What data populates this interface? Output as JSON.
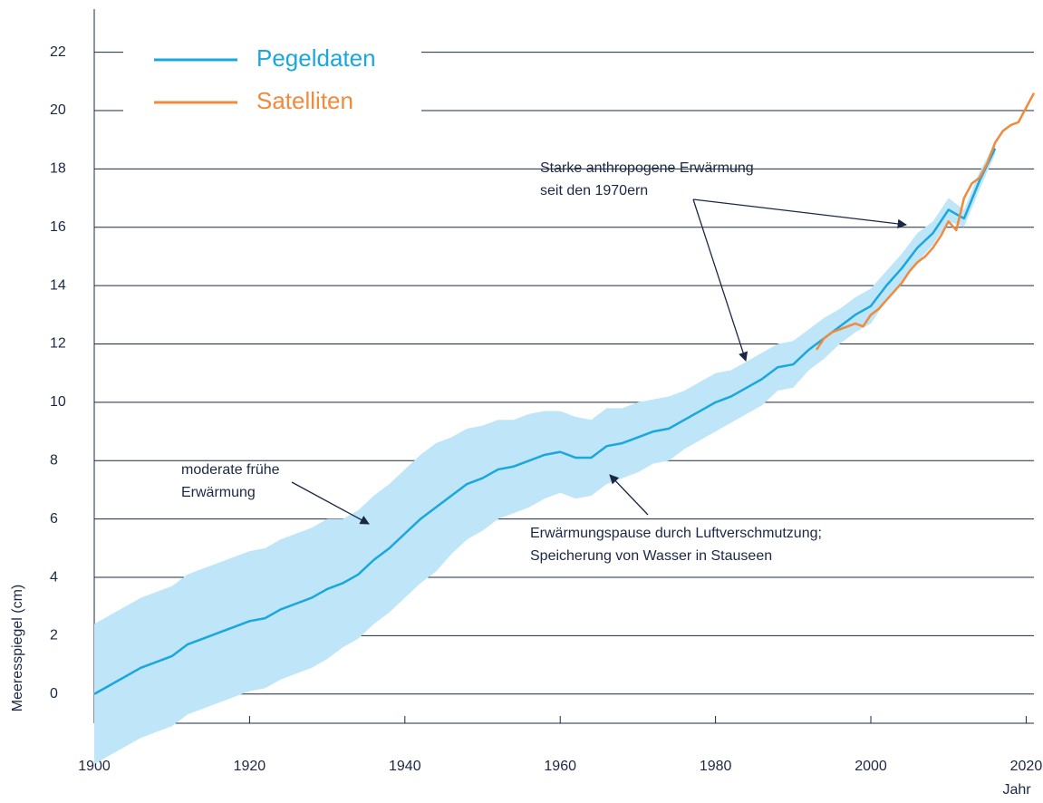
{
  "chart_data": {
    "type": "line",
    "y_label": "Meeresspiegel (cm)",
    "x_label": "Jahr",
    "xlim": [
      1900,
      2021
    ],
    "ylim": [
      -1,
      22
    ],
    "xticks": [
      1900,
      1920,
      1940,
      1960,
      1980,
      2000,
      2020
    ],
    "yticks": [
      0,
      2,
      4,
      6,
      8,
      10,
      12,
      14,
      16,
      18,
      20,
      22
    ],
    "grid": true,
    "legend": "upper left",
    "band_color": "#bfe5f8",
    "series": [
      {
        "name": "Pegeldaten",
        "color": "#1aa7dd",
        "x": [
          1900,
          1902,
          1904,
          1906,
          1908,
          1910,
          1912,
          1914,
          1916,
          1918,
          1920,
          1922,
          1924,
          1926,
          1928,
          1930,
          1932,
          1934,
          1936,
          1938,
          1940,
          1942,
          1944,
          1946,
          1948,
          1950,
          1952,
          1954,
          1956,
          1958,
          1960,
          1962,
          1964,
          1966,
          1968,
          1970,
          1972,
          1974,
          1976,
          1978,
          1980,
          1982,
          1984,
          1986,
          1988,
          1990,
          1992,
          1994,
          1996,
          1998,
          2000,
          2002,
          2004,
          2006,
          2008,
          2010,
          2012,
          2014,
          2016
        ],
        "values": [
          0,
          0.3,
          0.6,
          0.9,
          1.1,
          1.3,
          1.7,
          1.9,
          2.1,
          2.3,
          2.5,
          2.6,
          2.9,
          3.1,
          3.3,
          3.6,
          3.8,
          4.1,
          4.6,
          5.0,
          5.5,
          6.0,
          6.4,
          6.8,
          7.2,
          7.4,
          7.7,
          7.8,
          8.0,
          8.2,
          8.3,
          8.1,
          8.1,
          8.5,
          8.6,
          8.8,
          9.0,
          9.1,
          9.4,
          9.7,
          10.0,
          10.2,
          10.5,
          10.8,
          11.2,
          11.3,
          11.8,
          12.2,
          12.6,
          13.0,
          13.3,
          14.0,
          14.6,
          15.3,
          15.8,
          16.6,
          16.3,
          17.6,
          18.7
        ],
        "lower": [
          -2.4,
          -2.1,
          -1.8,
          -1.5,
          -1.3,
          -1.1,
          -0.7,
          -0.5,
          -0.3,
          -0.1,
          0.1,
          0.2,
          0.5,
          0.7,
          0.9,
          1.2,
          1.6,
          1.9,
          2.4,
          2.8,
          3.3,
          3.8,
          4.2,
          4.8,
          5.3,
          5.6,
          6.0,
          6.2,
          6.4,
          6.7,
          6.9,
          6.7,
          6.8,
          7.2,
          7.4,
          7.6,
          7.9,
          8.0,
          8.4,
          8.7,
          9.0,
          9.3,
          9.6,
          9.9,
          10.4,
          10.5,
          11.1,
          11.5,
          12.0,
          12.4,
          12.7,
          13.5,
          14.1,
          14.8,
          15.4,
          16.2,
          16.0,
          17.3,
          18.5
        ],
        "upper": [
          2.4,
          2.7,
          3.0,
          3.3,
          3.5,
          3.7,
          4.1,
          4.3,
          4.5,
          4.7,
          4.9,
          5.0,
          5.3,
          5.5,
          5.7,
          6.0,
          6.0,
          6.3,
          6.8,
          7.2,
          7.7,
          8.2,
          8.6,
          8.8,
          9.1,
          9.2,
          9.4,
          9.4,
          9.6,
          9.7,
          9.7,
          9.5,
          9.4,
          9.8,
          9.8,
          10.0,
          10.1,
          10.2,
          10.4,
          10.7,
          11.0,
          11.1,
          11.4,
          11.7,
          12.0,
          12.1,
          12.5,
          12.9,
          13.2,
          13.6,
          13.9,
          14.5,
          15.1,
          15.8,
          16.2,
          17.0,
          16.6,
          17.9,
          18.9
        ]
      },
      {
        "name": "Satelliten",
        "color": "#f08a3c",
        "x": [
          1993,
          1994,
          1995,
          1996,
          1997,
          1998,
          1999,
          2000,
          2001,
          2002,
          2003,
          2004,
          2005,
          2006,
          2007,
          2008,
          2009,
          2010,
          2011,
          2012,
          2013,
          2014,
          2015,
          2016,
          2017,
          2018,
          2019,
          2020,
          2021
        ],
        "values": [
          11.8,
          12.2,
          12.4,
          12.5,
          12.6,
          12.7,
          12.6,
          13.0,
          13.2,
          13.5,
          13.8,
          14.1,
          14.5,
          14.8,
          15.0,
          15.3,
          15.7,
          16.2,
          15.9,
          17.0,
          17.5,
          17.7,
          18.2,
          18.9,
          19.3,
          19.5,
          19.6,
          20.1,
          20.6
        ]
      }
    ],
    "annotations": [
      {
        "lines": [
          "moderate frühe",
          "Erwärmung"
        ]
      },
      {
        "lines": [
          "Erwärmungspause durch Luftverschmutzung;",
          "Speicherung von Wasser in Stauseen"
        ]
      },
      {
        "lines": [
          "Starke anthropogene Erwärmung",
          "seit den 1970ern"
        ]
      }
    ]
  }
}
